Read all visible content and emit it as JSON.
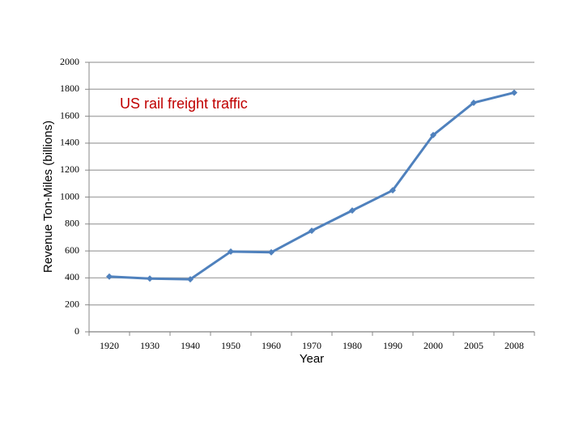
{
  "chart_data": {
    "type": "line",
    "title": "US rail freight traffic",
    "x_label": "Year",
    "y_label": "Revenue Ton-Miles (billions)",
    "categories": [
      "1920",
      "1930",
      "1940",
      "1950",
      "1960",
      "1970",
      "1980",
      "1990",
      "2000",
      "2005",
      "2008"
    ],
    "series": [
      {
        "name": "Revenue Ton-Miles",
        "color": "#4f81bd",
        "values": [
          410,
          395,
          390,
          595,
          590,
          750,
          900,
          1050,
          1460,
          1700,
          1775
        ]
      }
    ],
    "ylim": [
      0,
      2000
    ],
    "yticks": [
      0,
      200,
      400,
      600,
      800,
      1000,
      1200,
      1400,
      1600,
      1800,
      2000
    ],
    "grid": true
  }
}
